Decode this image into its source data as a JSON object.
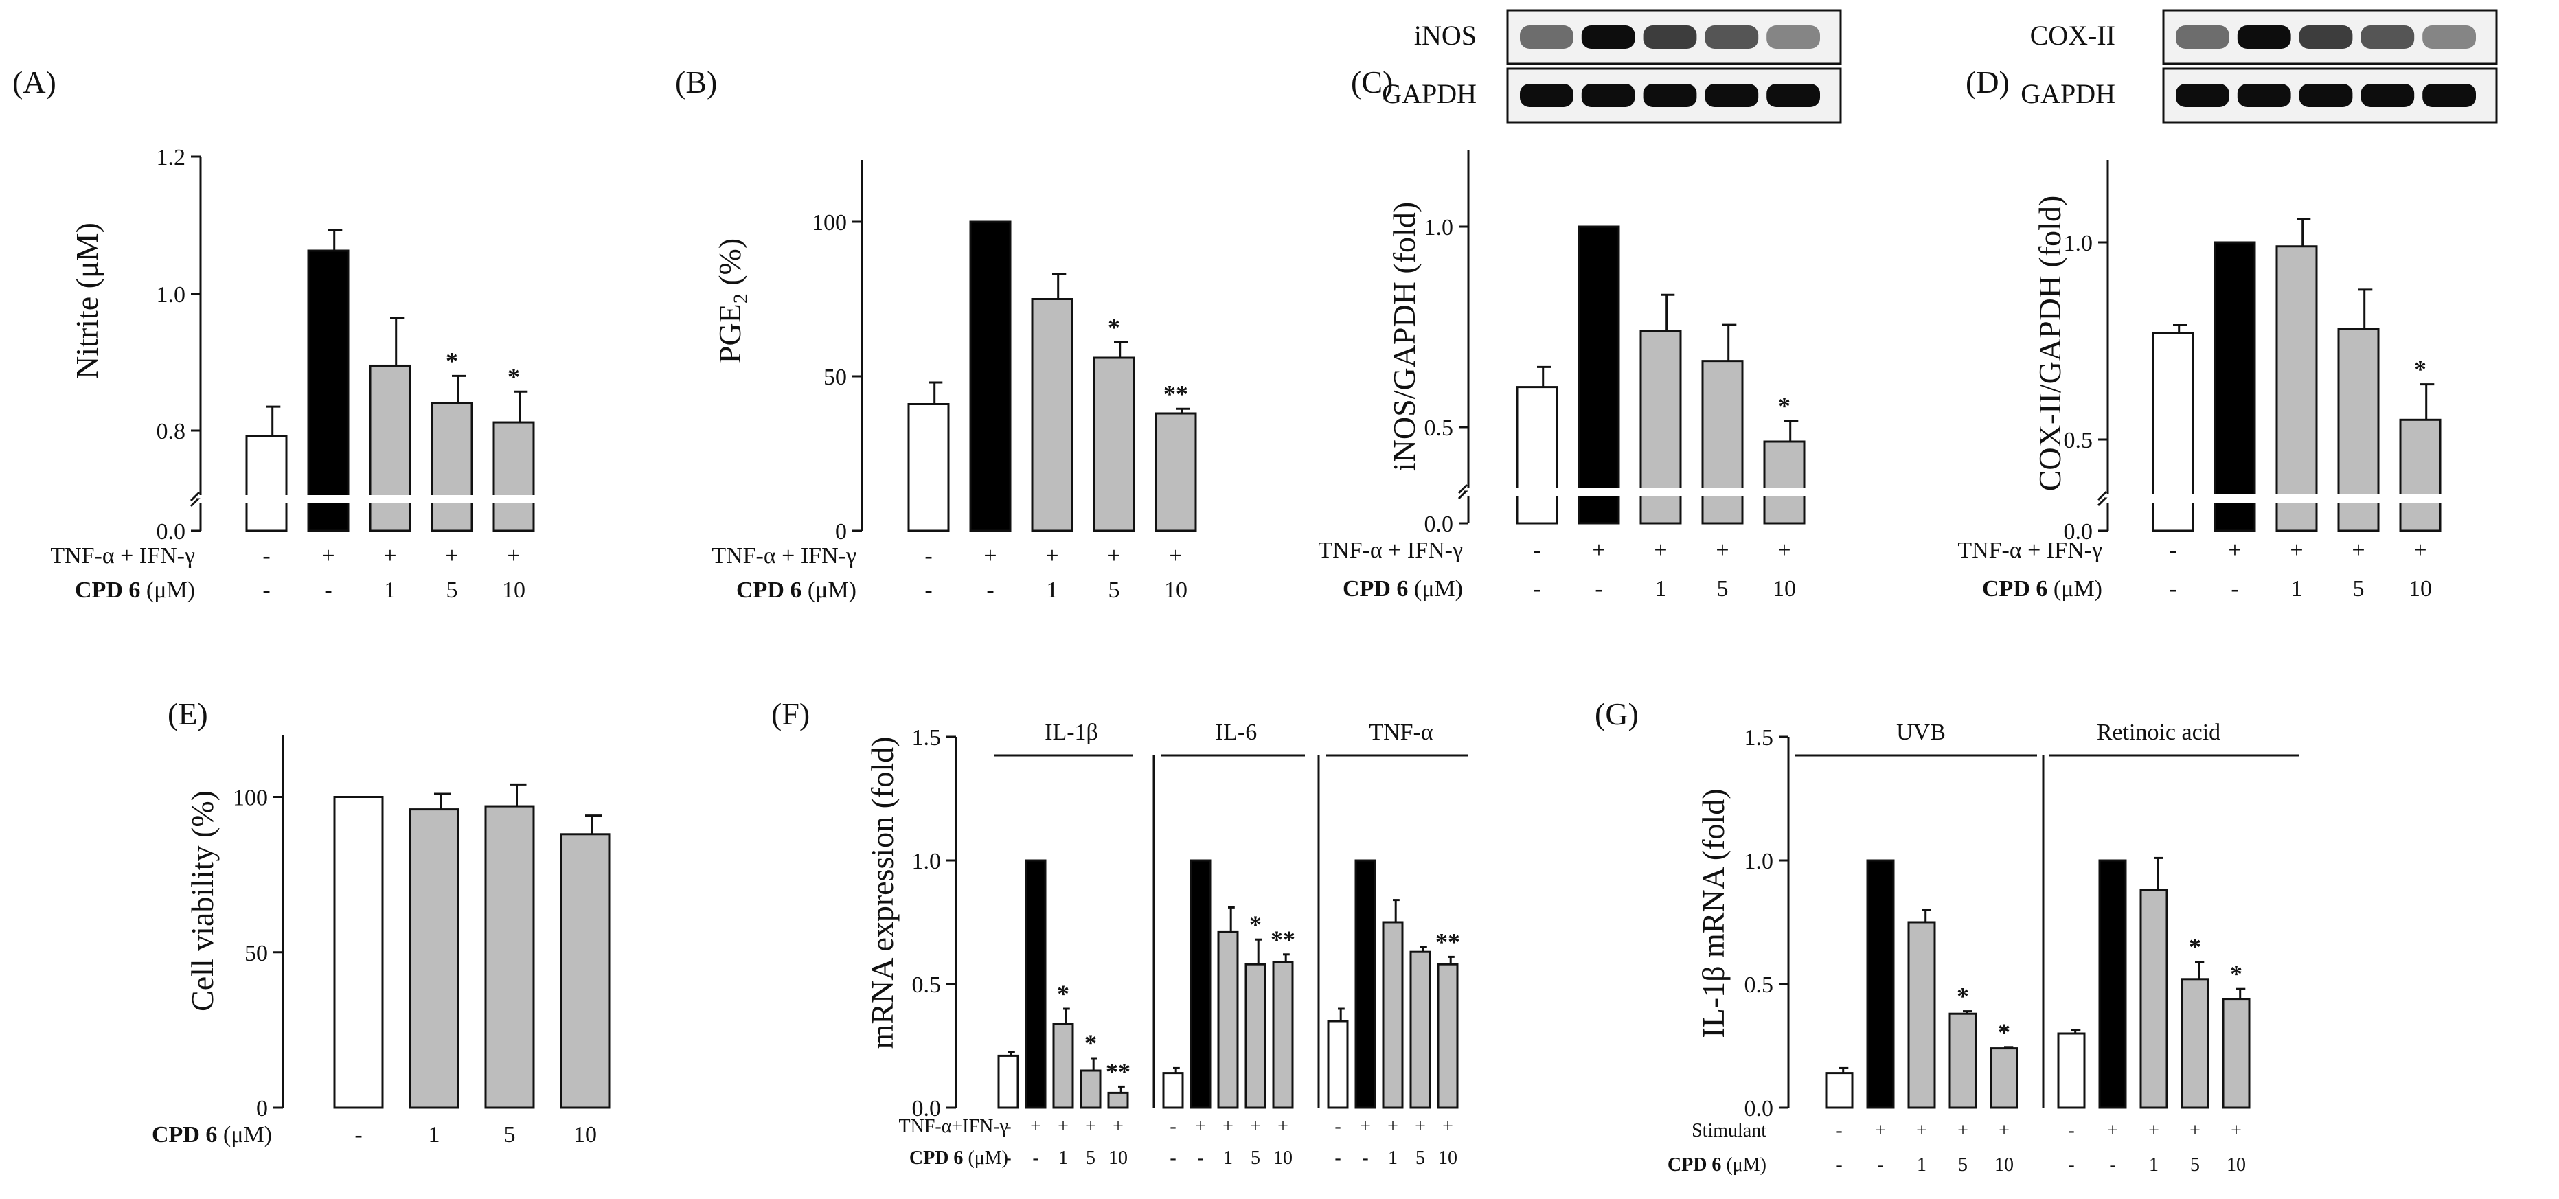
{
  "chart_data": [
    {
      "panel": "(A)",
      "type": "bar",
      "ylabel": "Nitrite (μM)",
      "y_ticks": [
        "0.0",
        "0.8",
        "1.0",
        "1.2"
      ],
      "axis_break": true,
      "values": [
        0.755,
        1.063,
        0.895,
        0.84,
        0.812
      ],
      "errors": [
        0.08,
        0.03,
        0.07,
        0.04,
        0.045
      ],
      "fills": [
        "#ffffff",
        "#000000",
        "#bdbdbd",
        "#bdbdbd",
        "#bdbdbd"
      ],
      "significance": [
        "",
        "",
        "",
        "*",
        "*"
      ],
      "condition_rows": [
        {
          "label": "TNF-α + IFN-γ",
          "values": [
            "-",
            "+",
            "+",
            "+",
            "+"
          ]
        },
        {
          "label_bold": "CPD 6",
          "label_rest": " (μM)",
          "values": [
            "-",
            "-",
            "1",
            "5",
            "10"
          ]
        }
      ]
    },
    {
      "panel": "(B)",
      "type": "bar",
      "ylabel_main": "PGE",
      "ylabel_sub": "2",
      "ylabel_rest": " (%)",
      "y_ticks": [
        "0",
        "50",
        "100"
      ],
      "ylim": [
        0,
        120
      ],
      "values": [
        41,
        100,
        75,
        56,
        38
      ],
      "errors": [
        7,
        0,
        8,
        5,
        1.5
      ],
      "fills": [
        "#ffffff",
        "#000000",
        "#bdbdbd",
        "#bdbdbd",
        "#bdbdbd"
      ],
      "significance": [
        "",
        "",
        "",
        "*",
        "**"
      ],
      "condition_rows": [
        {
          "label": "TNF-α + IFN-γ",
          "values": [
            "-",
            "+",
            "+",
            "+",
            "+"
          ]
        },
        {
          "label_bold": "CPD 6",
          "label_rest": " (μM)",
          "values": [
            "-",
            "-",
            "1",
            "5",
            "10"
          ]
        }
      ]
    },
    {
      "panel": "(C)",
      "type": "bar",
      "ylabel": "iNOS/GAPDH (fold)",
      "y_ticks": [
        "0.0",
        "0.5",
        "1.0"
      ],
      "axis_break": true,
      "values": [
        0.6,
        1.0,
        0.74,
        0.665,
        0.425
      ],
      "errors": [
        0.05,
        0,
        0.09,
        0.09,
        0.09
      ],
      "fills": [
        "#ffffff",
        "#000000",
        "#bdbdbd",
        "#bdbdbd",
        "#bdbdbd"
      ],
      "significance": [
        "",
        "",
        "",
        "",
        "*"
      ],
      "blot_labels": [
        "iNOS",
        "GAPDH"
      ],
      "condition_rows": [
        {
          "label": "TNF-α + IFN-γ",
          "values": [
            "-",
            "+",
            "+",
            "+",
            "+"
          ]
        },
        {
          "label_bold": "CPD 6",
          "label_rest": " (μM)",
          "values": [
            "-",
            "-",
            "1",
            "5",
            "10"
          ]
        }
      ]
    },
    {
      "panel": "(D)",
      "type": "bar",
      "ylabel": "COX-II/GAPDH (fold)",
      "y_ticks": [
        "0.0",
        "0.5",
        "1.0"
      ],
      "axis_break": true,
      "values": [
        0.77,
        1.0,
        0.99,
        0.78,
        0.55
      ],
      "errors": [
        0.02,
        0,
        0.07,
        0.1,
        0.09
      ],
      "fills": [
        "#ffffff",
        "#000000",
        "#bdbdbd",
        "#bdbdbd",
        "#bdbdbd"
      ],
      "significance": [
        "",
        "",
        "",
        "",
        "*"
      ],
      "blot_labels": [
        "COX-II",
        "GAPDH"
      ],
      "condition_rows": [
        {
          "label": "TNF-α + IFN-γ",
          "values": [
            "-",
            "+",
            "+",
            "+",
            "+"
          ]
        },
        {
          "label_bold": "CPD 6",
          "label_rest": " (μM)",
          "values": [
            "-",
            "-",
            "1",
            "5",
            "10"
          ]
        }
      ]
    },
    {
      "panel": "(E)",
      "type": "bar",
      "ylabel": "Cell viability (%)",
      "y_ticks": [
        "0",
        "50",
        "100"
      ],
      "ylim": [
        0,
        120
      ],
      "values": [
        100,
        96,
        97,
        88
      ],
      "errors": [
        0,
        5,
        7,
        6
      ],
      "fills": [
        "#ffffff",
        "#bdbdbd",
        "#bdbdbd",
        "#bdbdbd"
      ],
      "significance": [
        "",
        "",
        "",
        ""
      ],
      "condition_rows": [
        {
          "label_bold": "CPD 6",
          "label_rest": " (μM)",
          "values": [
            "-",
            "1",
            "5",
            "10"
          ]
        }
      ]
    },
    {
      "panel": "(F)",
      "type": "bar",
      "ylabel": "mRNA expression (fold)",
      "y_ticks": [
        "0.0",
        "0.5",
        "1.0",
        "1.5"
      ],
      "ylim": [
        0,
        1.5
      ],
      "groups": [
        {
          "name": "IL-1β",
          "values": [
            0.21,
            1.0,
            0.34,
            0.15,
            0.06
          ],
          "errors": [
            0.015,
            0,
            0.06,
            0.05,
            0.025
          ],
          "significance": [
            "",
            "",
            "*",
            "*",
            "**"
          ]
        },
        {
          "name": "IL-6",
          "values": [
            0.14,
            1.0,
            0.71,
            0.58,
            0.59
          ],
          "errors": [
            0.02,
            0,
            0.1,
            0.1,
            0.03
          ],
          "significance": [
            "",
            "",
            "",
            "*",
            "**"
          ]
        },
        {
          "name": "TNF-α",
          "values": [
            0.35,
            1.0,
            0.75,
            0.63,
            0.58
          ],
          "errors": [
            0.05,
            0,
            0.09,
            0.02,
            0.03
          ],
          "significance": [
            "",
            "",
            "",
            "",
            "**"
          ]
        }
      ],
      "fills": [
        "#ffffff",
        "#000000",
        "#bdbdbd",
        "#bdbdbd",
        "#bdbdbd"
      ],
      "condition_rows": [
        {
          "label": "TNF-α+IFN-γ",
          "values": [
            "-",
            "+",
            "+",
            "+",
            "+"
          ]
        },
        {
          "label_bold": "CPD 6",
          "label_rest": " (μM)",
          "values": [
            "-",
            "-",
            "1",
            "5",
            "10"
          ]
        }
      ]
    },
    {
      "panel": "(G)",
      "type": "bar",
      "ylabel": "IL-1β mRNA (fold)",
      "y_ticks": [
        "0.0",
        "0.5",
        "1.0",
        "1.5"
      ],
      "ylim": [
        0,
        1.5
      ],
      "groups": [
        {
          "name": "UVB",
          "values": [
            0.14,
            1.0,
            0.75,
            0.38,
            0.24
          ],
          "errors": [
            0.02,
            0,
            0.05,
            0.01,
            0.005
          ],
          "significance": [
            "",
            "",
            "",
            "*",
            "*"
          ]
        },
        {
          "name": "Retinoic acid",
          "values": [
            0.3,
            1.0,
            0.88,
            0.52,
            0.44
          ],
          "errors": [
            0.015,
            0,
            0.13,
            0.07,
            0.04
          ],
          "significance": [
            "",
            "",
            "",
            "*",
            "*"
          ]
        }
      ],
      "fills": [
        "#ffffff",
        "#000000",
        "#bdbdbd",
        "#bdbdbd",
        "#bdbdbd"
      ],
      "condition_rows": [
        {
          "label": "Stimulant",
          "values": [
            "-",
            "+",
            "+",
            "+",
            "+"
          ]
        },
        {
          "label_bold": "CPD 6",
          "label_rest": " (μM)",
          "values": [
            "-",
            "-",
            "1",
            "5",
            "10"
          ]
        }
      ]
    }
  ]
}
